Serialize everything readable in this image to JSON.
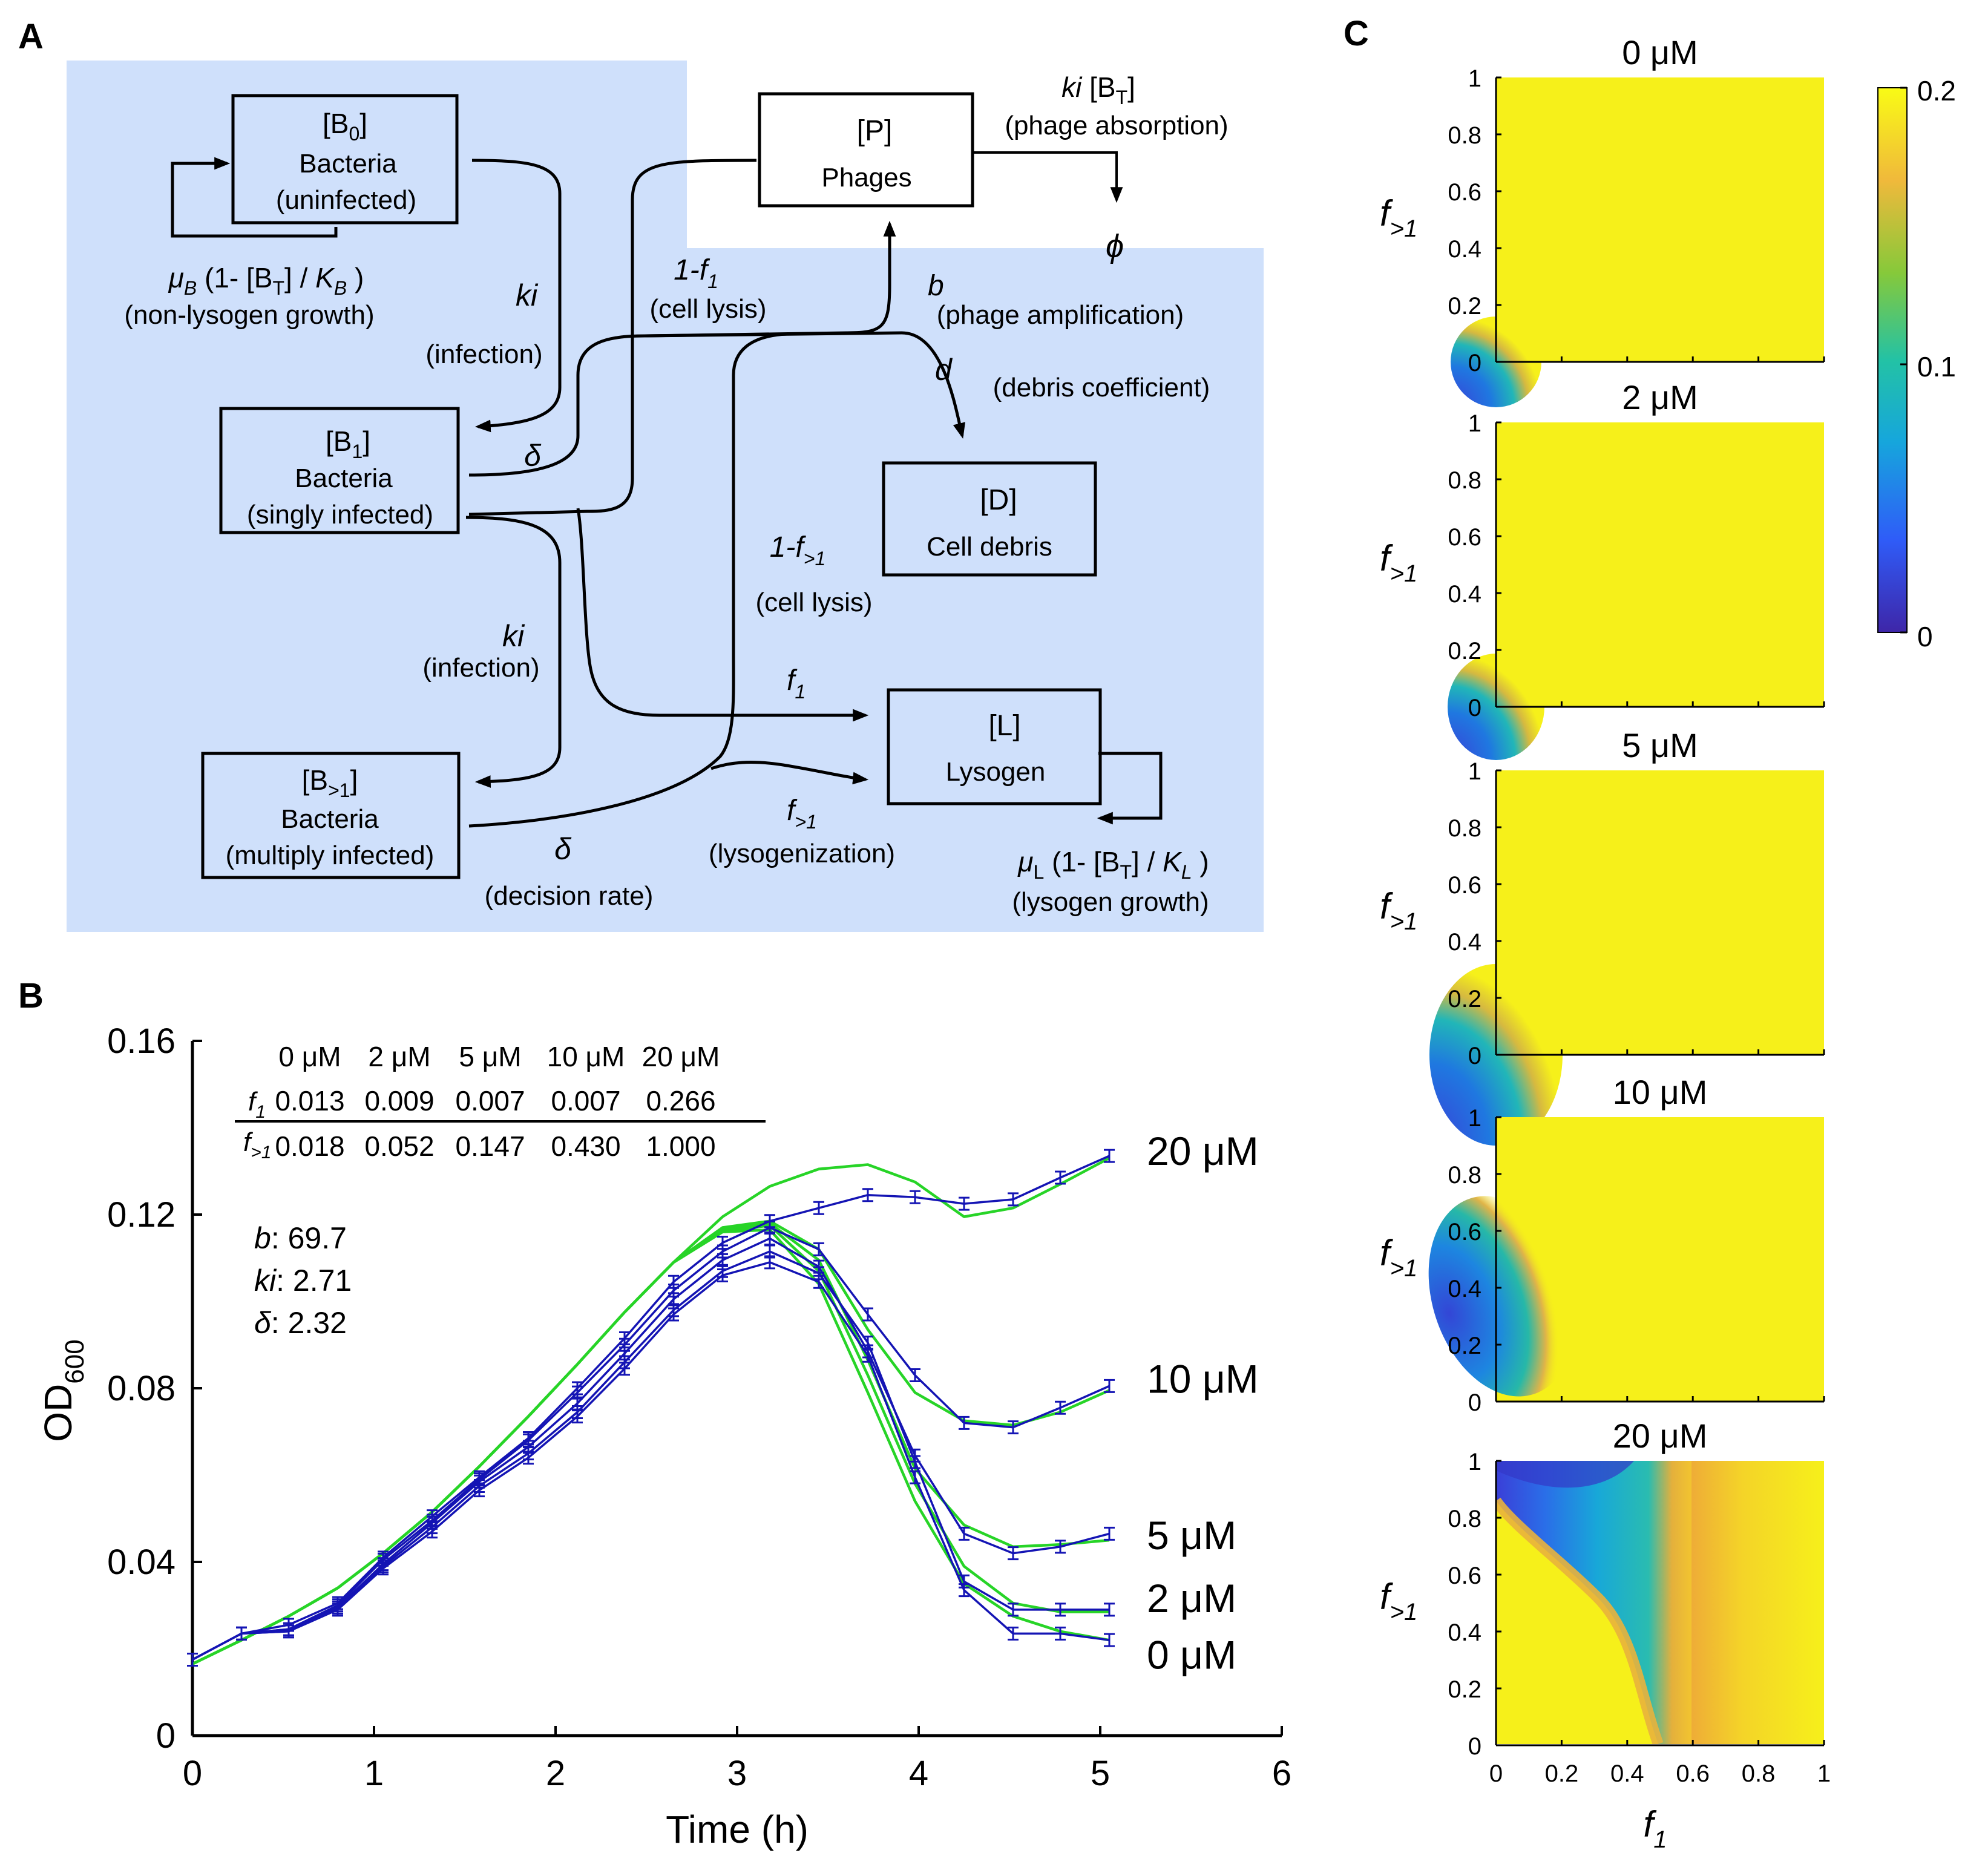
{
  "panels": {
    "a": "A",
    "b": "B",
    "c": "C"
  },
  "diagram": {
    "b0": {
      "label": "[B",
      "sub": "0",
      "close": "]",
      "line2": "Bacteria",
      "line3": "(uninfected)"
    },
    "p": {
      "label": "[P]",
      "line2": "Phages"
    },
    "b1": {
      "label": "[B",
      "sub": "1",
      "close": "]",
      "line2": "Bacteria",
      "line3": "(singly infected)"
    },
    "d": {
      "label": "[D]",
      "line2": "Cell debris"
    },
    "bm": {
      "label": "[B",
      "sub": ">1",
      "close": "]",
      "line2": "Bacteria",
      "line3": "(multiply infected)"
    },
    "l": {
      "label": "[L]",
      "line2": "Lysogen"
    },
    "absorption": {
      "ki": "ki",
      "bt": " [B",
      "tsub": "T",
      "close": "]",
      "desc": "(phage absorption)"
    },
    "phi": "ϕ",
    "nonlys_rate": {
      "mu": "μ",
      "sub": "B",
      "mid": " (1- [B",
      "tsub": "T",
      "mid2": "] / ",
      "k": "K",
      "ksub": "B",
      "close": " )"
    },
    "nonlys_desc": "(non-lysogen growth)",
    "ki_top": "ki",
    "infection_top": "(infection)",
    "f1_lysis": {
      "one": "1-",
      "f": "f",
      "sub": "1"
    },
    "cell_lysis_1": "(cell lysis)",
    "b_sym": "b",
    "phage_amp": "(phage amplification)",
    "d_sym": "d",
    "debris_coef": "(debris coefficient)",
    "delta1": "δ",
    "fgt_lysis": {
      "one": "1-",
      "f": "f",
      "sub": ">1"
    },
    "cell_lysis_2": "(cell lysis)",
    "ki_bot": "ki",
    "infection_bot": "(infection)",
    "f1_lab": {
      "f": "f",
      "sub": "1"
    },
    "fgt_lab": {
      "f": "f",
      "sub": ">1"
    },
    "lysogenization": "(lysogenization)",
    "delta2": "δ",
    "decision_rate": "(decision rate)",
    "lys_rate": {
      "mu": "μ",
      "sub": "L",
      "mid": " (1- [B",
      "tsub": "T",
      "mid2": "] / ",
      "k": "K",
      "ksub": "L",
      "close": " )"
    },
    "lys_desc": "(lysogen growth)"
  },
  "param_table": {
    "headers": [
      "0 μM",
      "2 μM",
      "5 μM",
      "10 μM",
      "20 μM"
    ],
    "row1": {
      "sym": "f",
      "sub": "1",
      "values": [
        "0.013",
        "0.009",
        "0.007",
        "0.007",
        "0.266"
      ]
    },
    "row2": {
      "sym": "f",
      "sub": ">1",
      "values": [
        "0.018",
        "0.052",
        "0.147",
        "0.430",
        "1.000"
      ]
    }
  },
  "fit_params": {
    "b": {
      "sym": "b",
      "val": ": 69.7"
    },
    "ki": {
      "sym": "ki",
      "val": ": 2.71"
    },
    "delta": {
      "sym": "δ",
      "val": ": 2.32"
    }
  },
  "heatmap_titles": [
    "0 μM",
    "2 μM",
    "5 μM",
    "10 μM",
    "20 μM"
  ],
  "heatmap_axis": {
    "ylabel": {
      "f": "f",
      "sub": ">1"
    },
    "xlabel": {
      "f": "f",
      "sub": "1"
    },
    "yticks": [
      "0",
      "0.2",
      "0.4",
      "0.6",
      "0.8",
      "1"
    ],
    "xticks": [
      "0",
      "0.2",
      "0.4",
      "0.6",
      "0.8",
      "1"
    ]
  },
  "colorbar": {
    "ticks": [
      "0.2",
      "0.1",
      "0"
    ],
    "colors": [
      "#3e26a8",
      "#2f5cf8",
      "#16a6dc",
      "#23c2a5",
      "#86c93a",
      "#f0b93b",
      "#f9fb15"
    ]
  },
  "colors": {
    "diagram_bg": "#cfe0fb",
    "data": "#1414b4",
    "model": "#27d427",
    "yellow": "#f6f01a"
  },
  "chart_data": {
    "type": "line",
    "title": "",
    "xlabel": "Time (h)",
    "ylabel": "OD",
    "ylabel_sub": "600",
    "xlim": [
      0,
      6
    ],
    "ylim": [
      0,
      0.16
    ],
    "xticks": [
      0,
      1,
      2,
      3,
      4,
      5,
      6
    ],
    "yticks": [
      0,
      0.04,
      0.08,
      0.12,
      0.16
    ],
    "ytick_labels": [
      "0",
      "0.04",
      "0.08",
      "0.12",
      "0.16"
    ],
    "x": [
      0,
      0.27,
      0.53,
      0.8,
      1.05,
      1.32,
      1.58,
      1.85,
      2.12,
      2.38,
      2.65,
      2.92,
      3.18,
      3.45,
      3.72,
      3.98,
      4.25,
      4.52,
      4.78,
      5.05
    ],
    "series": [
      {
        "name": "20 μM",
        "label": "20 μM",
        "label_y": 0.1345,
        "measured": [
          0.0175,
          0.0235,
          0.0255,
          0.0305,
          0.041,
          0.0505,
          0.0595,
          0.0685,
          0.08,
          0.0915,
          0.1045,
          0.1135,
          0.1185,
          0.1215,
          0.1245,
          0.124,
          0.1225,
          0.1235,
          0.1285,
          0.1335
        ],
        "model": [
          0.0165,
          0.022,
          0.0275,
          0.034,
          0.042,
          0.0515,
          0.062,
          0.0735,
          0.0855,
          0.0975,
          0.109,
          0.1195,
          0.1265,
          0.1305,
          0.1315,
          0.1275,
          0.1195,
          0.1215,
          0.127,
          0.133
        ]
      },
      {
        "name": "10 μM",
        "label": "10 μM",
        "label_y": 0.082,
        "measured": [
          0.0175,
          0.0235,
          0.0245,
          0.03,
          0.0405,
          0.0495,
          0.059,
          0.068,
          0.079,
          0.09,
          0.1025,
          0.1115,
          0.117,
          0.112,
          0.097,
          0.083,
          0.072,
          0.071,
          0.0755,
          0.0805
        ],
        "model": [
          0.0165,
          0.022,
          0.0275,
          0.034,
          0.042,
          0.0515,
          0.062,
          0.0735,
          0.0855,
          0.0975,
          0.109,
          0.117,
          0.1185,
          0.112,
          0.0935,
          0.079,
          0.0725,
          0.0715,
          0.0745,
          0.0795
        ]
      },
      {
        "name": "5 μM",
        "label": "5 μM",
        "label_y": 0.046,
        "measured": [
          0.0175,
          0.0235,
          0.0245,
          0.0295,
          0.0395,
          0.049,
          0.0585,
          0.0665,
          0.0765,
          0.088,
          0.1005,
          0.1095,
          0.1145,
          0.108,
          0.0885,
          0.0645,
          0.0465,
          0.042,
          0.0435,
          0.0465
        ],
        "model": [
          0.0165,
          0.022,
          0.0275,
          0.034,
          0.042,
          0.0515,
          0.062,
          0.0735,
          0.0855,
          0.0975,
          0.109,
          0.1165,
          0.118,
          0.1095,
          0.0865,
          0.0615,
          0.0485,
          0.0435,
          0.044,
          0.045
        ]
      },
      {
        "name": "2 μM",
        "label": "2 μM",
        "label_y": 0.0315,
        "measured": [
          0.0175,
          0.0235,
          0.024,
          0.0295,
          0.039,
          0.048,
          0.0575,
          0.065,
          0.0745,
          0.086,
          0.098,
          0.107,
          0.1115,
          0.1065,
          0.0905,
          0.063,
          0.0355,
          0.029,
          0.029,
          0.029
        ],
        "model": [
          0.0165,
          0.022,
          0.0275,
          0.034,
          0.042,
          0.0515,
          0.062,
          0.0735,
          0.0855,
          0.0975,
          0.109,
          0.116,
          0.1175,
          0.107,
          0.083,
          0.058,
          0.039,
          0.0305,
          0.0285,
          0.0285
        ]
      },
      {
        "name": "0 μM",
        "label": "0 μM",
        "label_y": 0.0185,
        "measured": [
          0.0175,
          0.0235,
          0.024,
          0.029,
          0.0385,
          0.047,
          0.0565,
          0.064,
          0.0735,
          0.0845,
          0.097,
          0.106,
          0.109,
          0.1045,
          0.0875,
          0.0595,
          0.0335,
          0.0235,
          0.0235,
          0.022
        ],
        "model": [
          0.0165,
          0.022,
          0.0275,
          0.034,
          0.042,
          0.0515,
          0.062,
          0.0735,
          0.0855,
          0.0975,
          0.109,
          0.116,
          0.1165,
          0.104,
          0.079,
          0.054,
          0.035,
          0.0275,
          0.024,
          0.022
        ]
      }
    ]
  }
}
